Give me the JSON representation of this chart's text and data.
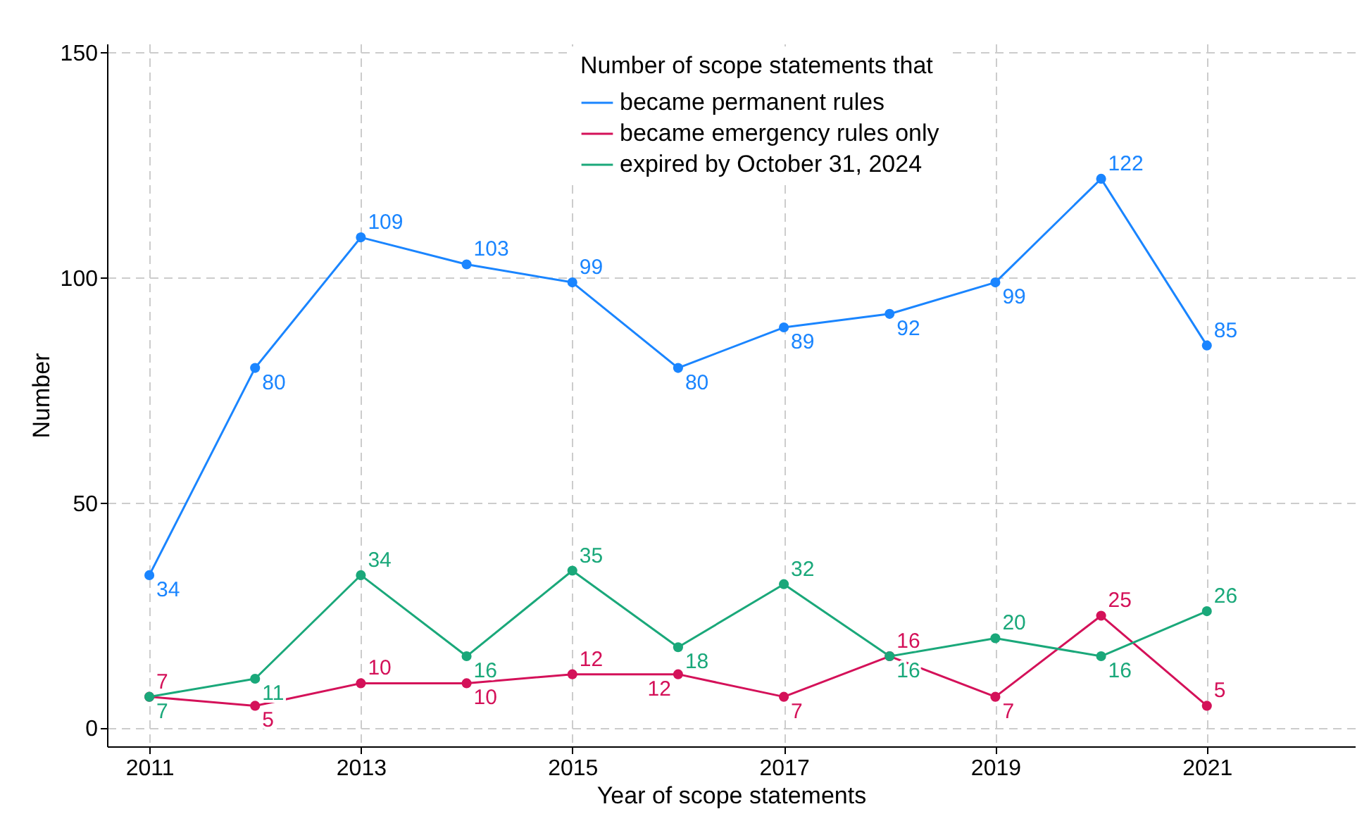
{
  "chart_data": {
    "type": "line",
    "xlabel": "Year of scope statements",
    "ylabel": "Number",
    "legend_title": "Number of scope statements that",
    "x": [
      2011,
      2012,
      2013,
      2014,
      2015,
      2016,
      2017,
      2018,
      2019,
      2020,
      2021
    ],
    "series": [
      {
        "name": "became permanent rules",
        "color": "#1a85ff",
        "values": [
          34,
          80,
          109,
          103,
          99,
          80,
          89,
          92,
          99,
          122,
          85
        ]
      },
      {
        "name": "became emergency rules only",
        "color": "#d41159",
        "values": [
          7,
          5,
          10,
          10,
          12,
          12,
          7,
          16,
          7,
          25,
          5
        ]
      },
      {
        "name": "expired by October 31, 2024",
        "color": "#1aa87a",
        "values": [
          7,
          11,
          34,
          16,
          35,
          18,
          32,
          16,
          20,
          16,
          26
        ]
      }
    ],
    "xlim": [
      2010.6,
      2022.4
    ],
    "xticks": [
      2011,
      2013,
      2015,
      2017,
      2019,
      2021
    ],
    "ylim": [
      -4,
      152
    ],
    "yticks": [
      0,
      50,
      100,
      150
    ],
    "grid": true,
    "legend": "top",
    "marker": "circle",
    "line_style": "solid",
    "data_labels": true
  }
}
